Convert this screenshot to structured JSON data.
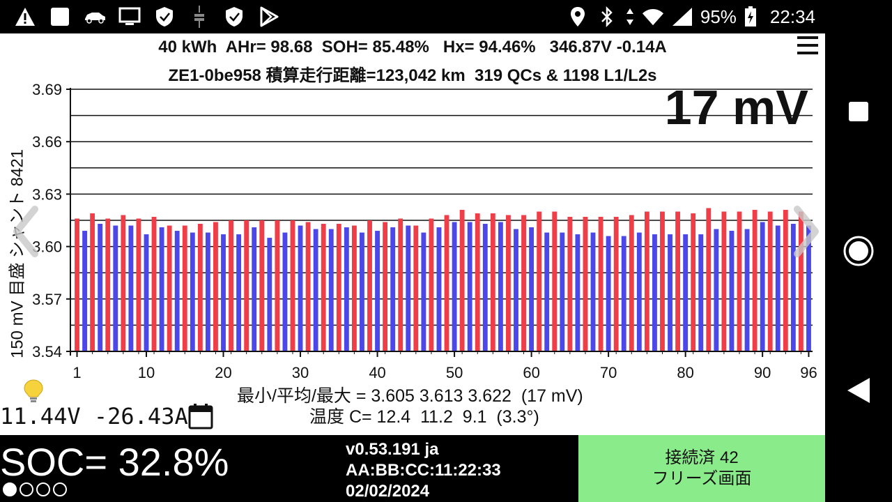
{
  "status_bar": {
    "left_icons": [
      "warning-icon",
      "square-icon",
      "car-icon",
      "monitor-icon",
      "shield-icon",
      "usb-icon",
      "shield-icon",
      "play-store-icon"
    ],
    "right_icons": [
      "location-icon",
      "bluetooth-icon",
      "data-arrows-icon",
      "wifi-icon",
      "signal-icon",
      "battery-icon"
    ],
    "battery_percent": "95%",
    "time": "22:34"
  },
  "header": {
    "line1": "40 kWh  AHr= 98.68  SOH= 85.48%   Hx= 94.46%   346.87V -0.14A",
    "line2": "ZE1-0be958 積算走行距離=123,042 km  319 QCs & 1198 L1/L2s"
  },
  "delta_label": "17 mV",
  "y_axis_label": "150 mV 目盛  シャント 8421",
  "stats_line": "最小/平均/最大 = 3.605 3.613 3.622  (17 mV)",
  "temperature_line": "温度 C= 12.4  11.2  9.1  (3.3°)",
  "aux_readout": "11.44V -26.43A",
  "soc": "SOC= 32.8%",
  "soc_dots": [
    true,
    false,
    false,
    false
  ],
  "version": {
    "version": "v0.53.191 ja",
    "mac": "AA:BB:CC:11:22:33",
    "date": "02/02/2024"
  },
  "connection": {
    "line1": "接続済 42",
    "line2": "フリーズ画面"
  },
  "colors": {
    "even_cell": "#ef3e48",
    "odd_cell": "#4b47e8",
    "connected_bg": "#8aeb8a"
  },
  "chart_data": {
    "type": "bar",
    "title": "",
    "xlabel": "",
    "ylabel": "150 mV 目盛  シャント 8421",
    "xlim": [
      1,
      96
    ],
    "ylim": [
      3.54,
      3.69
    ],
    "y_ticks": [
      "3.69",
      "3.66",
      "3.63",
      "3.60",
      "3.57",
      "3.54"
    ],
    "x_ticks": [
      "1",
      "10",
      "20",
      "30",
      "40",
      "50",
      "60",
      "70",
      "80",
      "90",
      "96"
    ],
    "grid": true,
    "legend": "none",
    "series": [
      {
        "values": [
          3.616,
          3.609,
          3.619,
          3.613,
          3.616,
          3.612,
          3.618,
          3.612,
          3.616,
          3.607,
          3.617,
          3.611,
          3.612,
          3.609,
          3.612,
          3.608,
          3.613,
          3.608,
          3.614,
          3.607,
          3.615,
          3.607,
          3.615,
          3.611,
          3.615,
          3.605,
          3.615,
          3.608,
          3.615,
          3.612,
          3.614,
          3.61,
          3.613,
          3.61,
          3.613,
          3.611,
          3.612,
          3.608,
          3.615,
          3.609,
          3.614,
          3.611,
          3.616,
          3.612,
          3.612,
          3.608,
          3.616,
          3.611,
          3.618,
          3.614,
          3.621,
          3.614,
          3.619,
          3.613,
          3.619,
          3.614,
          3.618,
          3.61,
          3.618,
          3.611,
          3.62,
          3.608,
          3.62,
          3.608,
          3.617,
          3.607,
          3.617,
          3.608,
          3.617,
          3.606,
          3.617,
          3.606,
          3.618,
          3.608,
          3.62,
          3.607,
          3.62,
          3.607,
          3.62,
          3.607,
          3.619,
          3.607,
          3.622,
          3.61,
          3.62,
          3.609,
          3.62,
          3.61,
          3.621,
          3.614,
          3.62,
          3.612,
          3.621,
          3.613,
          3.62,
          3.612
        ]
      }
    ]
  }
}
